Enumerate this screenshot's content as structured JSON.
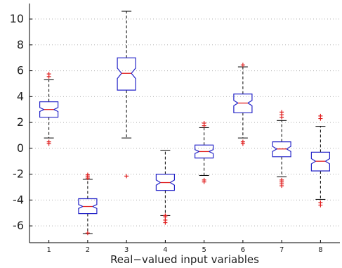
{
  "chart_data": {
    "type": "boxplot",
    "xlabel": "Real−valued input variables",
    "ylabel": "",
    "title": "",
    "categories": [
      "1",
      "2",
      "3",
      "4",
      "5",
      "6",
      "7",
      "8"
    ],
    "ylim": [
      -7.3,
      11.2
    ],
    "yticks": [
      -6,
      -4,
      -2,
      0,
      2,
      4,
      6,
      8,
      10
    ],
    "grid": "dotted",
    "notched": true,
    "colors": {
      "box": "#2424c8",
      "median": "#e02020",
      "whisker": "#000000",
      "outlier": "#e02020",
      "grid": "#b0b0b0"
    },
    "boxes": [
      {
        "label": "1",
        "q1": 2.4,
        "median": 3.0,
        "q3": 3.6,
        "whisker_low": 0.8,
        "whisker_high": 5.3,
        "notch_low": 2.85,
        "notch_high": 3.15,
        "outliers": [
          0.35,
          0.5,
          5.55,
          5.75
        ]
      },
      {
        "label": "2",
        "q1": -5.05,
        "median": -4.5,
        "q3": -3.9,
        "whisker_low": -6.6,
        "whisker_high": -2.4,
        "notch_low": -4.65,
        "notch_high": -4.35,
        "outliers": [
          -6.55,
          -2.3,
          -2.15,
          -2.05
        ]
      },
      {
        "label": "3",
        "q1": 4.5,
        "median": 5.8,
        "q3": 7.0,
        "whisker_low": 0.8,
        "whisker_high": 10.6,
        "notch_low": 5.4,
        "notch_high": 6.2,
        "outliers": [
          -2.15
        ]
      },
      {
        "label": "4",
        "q1": -3.25,
        "median": -2.65,
        "q3": -2.0,
        "whisker_low": -5.2,
        "whisker_high": -0.15,
        "notch_low": -2.85,
        "notch_high": -2.45,
        "outliers": [
          -5.2,
          -5.3,
          -5.55,
          -5.75
        ]
      },
      {
        "label": "5",
        "q1": -0.75,
        "median": -0.25,
        "q3": 0.25,
        "whisker_low": -2.1,
        "whisker_high": 1.6,
        "notch_low": -0.4,
        "notch_high": -0.1,
        "outliers": [
          -2.45,
          -2.6,
          1.75,
          1.95
        ]
      },
      {
        "label": "6",
        "q1": 2.75,
        "median": 3.5,
        "q3": 4.2,
        "whisker_low": 0.8,
        "whisker_high": 6.3,
        "notch_low": 3.3,
        "notch_high": 3.7,
        "outliers": [
          0.5,
          0.35,
          6.45
        ]
      },
      {
        "label": "7",
        "q1": -0.65,
        "median": -0.05,
        "q3": 0.5,
        "whisker_low": -2.2,
        "whisker_high": 2.15,
        "notch_low": -0.25,
        "notch_high": 0.15,
        "outliers": [
          -2.45,
          -2.6,
          -2.75,
          -2.9,
          2.4,
          2.6,
          2.8
        ]
      },
      {
        "label": "8",
        "q1": -1.75,
        "median": -1.0,
        "q3": -0.3,
        "whisker_low": -3.95,
        "whisker_high": 1.7,
        "notch_low": -1.2,
        "notch_high": -0.8,
        "outliers": [
          -4.2,
          -4.4,
          2.3,
          2.5
        ]
      }
    ]
  }
}
